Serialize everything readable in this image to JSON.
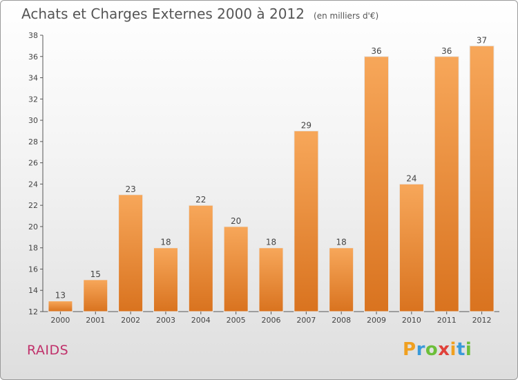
{
  "header": {
    "title": "Achats et Charges Externes 2000 à 2012",
    "unit": "(en milliers d'€)"
  },
  "footer": {
    "commune": "RAIDS",
    "logo": "Proxiti"
  },
  "colors": {
    "bar_top": "#f7a75a",
    "bar_bottom": "#d9731f",
    "axis": "#555555",
    "commune_text": "#c0306a"
  },
  "chart_data": {
    "type": "bar",
    "title": "Achats et Charges Externes 2000 à 2012",
    "subtitle": "(en milliers d'€)",
    "categories": [
      "2000",
      "2001",
      "2002",
      "2003",
      "2004",
      "2005",
      "2006",
      "2007",
      "2008",
      "2009",
      "2010",
      "2011",
      "2012"
    ],
    "values": [
      13,
      15,
      23,
      18,
      22,
      20,
      18,
      29,
      18,
      36,
      24,
      36,
      37
    ],
    "ylim": [
      12,
      38
    ],
    "yticks": [
      12,
      14,
      16,
      18,
      20,
      22,
      24,
      26,
      28,
      30,
      32,
      34,
      36,
      38
    ],
    "grid": false,
    "legend": "none",
    "xlabel": "",
    "ylabel": ""
  }
}
